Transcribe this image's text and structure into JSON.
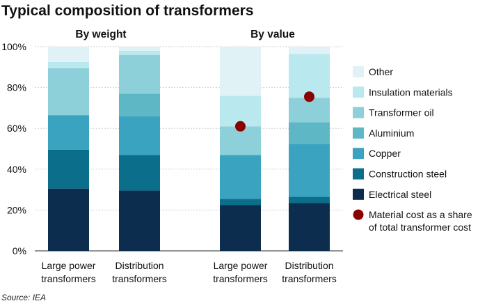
{
  "chart_data": {
    "type": "bar",
    "stacked": true,
    "normalized": true,
    "title": "Typical composition of transformers",
    "source": "Source: IEA",
    "ylim": [
      0,
      100
    ],
    "yticks": [
      0,
      20,
      40,
      60,
      80,
      100
    ],
    "ytick_labels": [
      "0%",
      "20%",
      "40%",
      "60%",
      "80%",
      "100%"
    ],
    "panels": [
      {
        "title": "By weight",
        "categories": [
          [
            "Large power",
            "transformers"
          ],
          [
            "Distribution",
            "transformers"
          ]
        ]
      },
      {
        "title": "By value",
        "categories": [
          [
            "Large power",
            "transformers"
          ],
          [
            "Distribution",
            "transformers"
          ]
        ]
      }
    ],
    "series": [
      {
        "name": "Electrical steel",
        "color": "#0d2d4f",
        "values": [
          30.5,
          29.5,
          22.5,
          23.5
        ]
      },
      {
        "name": "Construction steel",
        "color": "#0b6e8a",
        "values": [
          19,
          17.5,
          3,
          3
        ]
      },
      {
        "name": "Copper",
        "color": "#3aa4c0",
        "values": [
          17,
          19,
          21.5,
          26
        ]
      },
      {
        "name": "Aluminium",
        "color": "#5eb7c4",
        "values": [
          0,
          11,
          0,
          10.5
        ]
      },
      {
        "name": "Transformer oil",
        "color": "#8ed0d9",
        "values": [
          23,
          19,
          14,
          12
        ]
      },
      {
        "name": "Insulation materials",
        "color": "#b9e8ef",
        "values": [
          3,
          2,
          15,
          21.5
        ]
      },
      {
        "name": "Other",
        "color": "#e1f2f6",
        "values": [
          7.5,
          2,
          24,
          3.5
        ]
      }
    ],
    "markers": {
      "name": "Material cost as a share of total transformer cost",
      "legend_lines": [
        "Material cost as a share",
        "of total transformer cost"
      ],
      "color": "#8b0000",
      "values": [
        null,
        null,
        61,
        75.5
      ]
    },
    "legend_position": "right"
  }
}
